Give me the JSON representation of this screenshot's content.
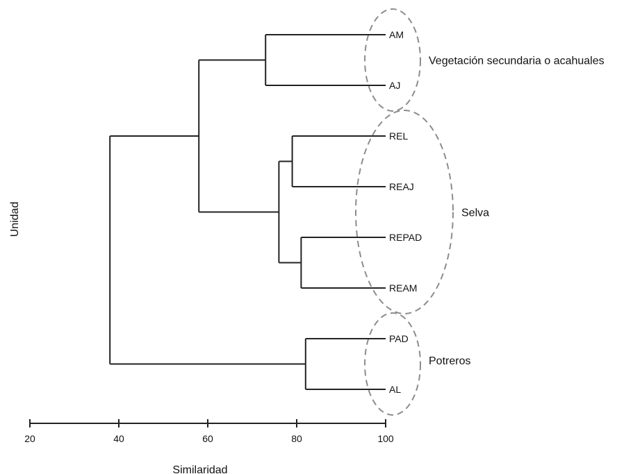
{
  "chart_data": {
    "type": "dendrogram",
    "xlabel": "Similaridad",
    "ylabel": "Unidad",
    "xlim": [
      20,
      100
    ],
    "x_ticks": [
      "20",
      "40",
      "60",
      "80",
      "100"
    ],
    "leaves": [
      "AM",
      "AJ",
      "REL",
      "REAJ",
      "REPAD",
      "REAM",
      "PAD",
      "AL"
    ],
    "merges": [
      {
        "id": "AM_AJ",
        "children": [
          "AM",
          "AJ"
        ],
        "similarity": 73
      },
      {
        "id": "REL_REAJ",
        "children": [
          "REL",
          "REAJ"
        ],
        "similarity": 79
      },
      {
        "id": "REPAD_REAM",
        "children": [
          "REPAD",
          "REAM"
        ],
        "similarity": 81
      },
      {
        "id": "selva",
        "children": [
          "REL_REAJ",
          "REPAD_REAM"
        ],
        "similarity": 76
      },
      {
        "id": "veg_selva",
        "children": [
          "AM_AJ",
          "selva"
        ],
        "similarity": 58
      },
      {
        "id": "PAD_AL",
        "children": [
          "PAD",
          "AL"
        ],
        "similarity": 82
      },
      {
        "id": "root",
        "children": [
          "veg_selva",
          "PAD_AL"
        ],
        "similarity": 38
      }
    ],
    "groups": [
      {
        "label": "Vegetación secundaria o acahuales",
        "members": [
          "AM",
          "AJ"
        ]
      },
      {
        "label": "Selva",
        "members": [
          "REL",
          "REAJ",
          "REPAD",
          "REAM"
        ]
      },
      {
        "label": "Potreros",
        "members": [
          "PAD",
          "AL"
        ]
      }
    ]
  }
}
